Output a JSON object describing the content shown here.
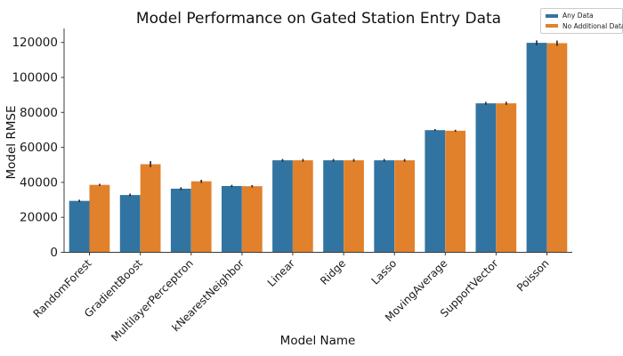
{
  "chart_data": {
    "type": "bar",
    "title": "Model Performance on Gated Station Entry Data",
    "xlabel": "Model Name",
    "ylabel": "Model RMSE",
    "categories": [
      "RandomForest",
      "GradientBoost",
      "MultilayerPerceptron",
      "kNearestNeighbor",
      "Linear",
      "Ridge",
      "Lasso",
      "MovingAverage",
      "SupportVector",
      "Poisson"
    ],
    "series": [
      {
        "name": "Any Data",
        "color": "#3274a1",
        "values": [
          29400,
          32800,
          36400,
          37900,
          52600,
          52600,
          52600,
          69900,
          85200,
          119800
        ],
        "errors": [
          700,
          800,
          800,
          700,
          800,
          800,
          800,
          600,
          800,
          1400
        ]
      },
      {
        "name": "No Additional Data",
        "color": "#e1812c",
        "values": [
          38600,
          50400,
          40600,
          37800,
          52600,
          52600,
          52600,
          69500,
          85200,
          119600
        ],
        "errors": [
          600,
          1700,
          900,
          700,
          800,
          800,
          800,
          600,
          900,
          1500
        ]
      }
    ],
    "ylim": [
      0,
      128000
    ],
    "yticks": [
      0,
      20000,
      40000,
      60000,
      80000,
      100000,
      120000
    ],
    "legend": {
      "position": "upper right"
    },
    "grid": false,
    "error_bar_color": "#2e2e2e",
    "axis_color": "#3b3b3b",
    "tick_label_color": "#1a1a1a",
    "background_color": "#ffffff"
  }
}
